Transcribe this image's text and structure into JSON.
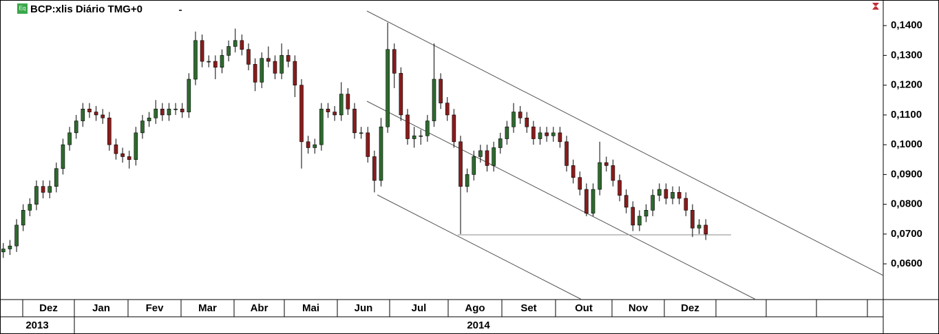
{
  "chart_data": {
    "type": "candlestick",
    "title": "BCP:xlis Diário TMG+0",
    "icon_label": "Eq",
    "up_color": "#2f6a2f",
    "down_color": "#8a1c1c",
    "ylim": [
      0.048,
      0.1486
    ],
    "yticks": [
      {
        "value": 0.14,
        "label": "0,1400"
      },
      {
        "value": 0.13,
        "label": "0,1300"
      },
      {
        "value": 0.12,
        "label": "0,1200"
      },
      {
        "value": 0.11,
        "label": "0,1100"
      },
      {
        "value": 0.1,
        "label": "0,1000"
      },
      {
        "value": 0.09,
        "label": "0,0900"
      },
      {
        "value": 0.08,
        "label": "0,0800"
      },
      {
        "value": 0.07,
        "label": "0,0700"
      },
      {
        "value": 0.06,
        "label": "0,0600"
      }
    ],
    "months": [
      "Dez",
      "Jan",
      "Fev",
      "Mar",
      "Abr",
      "Mai",
      "Jun",
      "Jul",
      "Ago",
      "Set",
      "Out",
      "Nov",
      "Dez"
    ],
    "years": [
      "2013",
      "2014"
    ],
    "open": [
      0.064,
      0.065,
      0.066,
      0.073,
      0.078,
      0.08,
      0.086,
      0.084,
      0.086,
      0.092,
      0.1,
      0.104,
      0.108,
      0.112,
      0.111,
      0.11,
      0.109,
      0.1,
      0.097,
      0.096,
      0.095,
      0.104,
      0.108,
      0.109,
      0.112,
      0.11,
      0.112,
      0.112,
      0.111,
      0.122,
      0.135,
      0.128,
      0.128,
      0.126,
      0.13,
      0.133,
      0.135,
      0.132,
      0.127,
      0.121,
      0.129,
      0.128,
      0.124,
      0.13,
      0.128,
      0.12,
      0.101,
      0.099,
      0.1,
      0.112,
      0.111,
      0.11,
      0.117,
      0.112,
      0.104,
      0.104,
      0.096,
      0.088,
      0.106,
      0.132,
      0.124,
      0.11,
      0.102,
      0.103,
      0.103,
      0.108,
      0.122,
      0.114,
      0.11,
      0.101,
      0.086,
      0.09,
      0.096,
      0.098,
      0.093,
      0.099,
      0.102,
      0.106,
      0.111,
      0.109,
      0.106,
      0.102,
      0.104,
      0.103,
      0.104,
      0.101,
      0.093,
      0.089,
      0.085,
      0.077,
      0.085,
      0.094,
      0.093,
      0.088,
      0.083,
      0.079,
      0.073,
      0.076,
      0.078,
      0.083,
      0.085,
      0.082,
      0.084,
      0.082,
      0.078,
      0.072,
      0.073
    ],
    "high": [
      0.067,
      0.068,
      0.075,
      0.08,
      0.082,
      0.088,
      0.088,
      0.088,
      0.094,
      0.102,
      0.106,
      0.11,
      0.114,
      0.114,
      0.113,
      0.112,
      0.111,
      0.102,
      0.099,
      0.098,
      0.106,
      0.11,
      0.111,
      0.115,
      0.114,
      0.114,
      0.114,
      0.114,
      0.124,
      0.138,
      0.137,
      0.13,
      0.13,
      0.132,
      0.135,
      0.139,
      0.137,
      0.134,
      0.129,
      0.131,
      0.133,
      0.13,
      0.134,
      0.132,
      0.13,
      0.122,
      0.103,
      0.102,
      0.114,
      0.114,
      0.113,
      0.121,
      0.119,
      0.114,
      0.106,
      0.106,
      0.098,
      0.109,
      0.141,
      0.134,
      0.126,
      0.112,
      0.106,
      0.105,
      0.11,
      0.134,
      0.124,
      0.116,
      0.112,
      0.103,
      0.092,
      0.098,
      0.1,
      0.1,
      0.101,
      0.104,
      0.108,
      0.114,
      0.113,
      0.111,
      0.108,
      0.106,
      0.106,
      0.106,
      0.106,
      0.103,
      0.095,
      0.091,
      0.087,
      0.087,
      0.101,
      0.096,
      0.095,
      0.09,
      0.085,
      0.081,
      0.078,
      0.08,
      0.085,
      0.087,
      0.087,
      0.086,
      0.086,
      0.084,
      0.08,
      0.075,
      0.075
    ],
    "low": [
      0.062,
      0.063,
      0.064,
      0.071,
      0.076,
      0.078,
      0.082,
      0.082,
      0.084,
      0.09,
      0.098,
      0.102,
      0.106,
      0.109,
      0.108,
      0.107,
      0.098,
      0.095,
      0.094,
      0.092,
      0.093,
      0.102,
      0.106,
      0.107,
      0.108,
      0.108,
      0.11,
      0.109,
      0.109,
      0.12,
      0.126,
      0.126,
      0.122,
      0.124,
      0.128,
      0.131,
      0.13,
      0.125,
      0.118,
      0.119,
      0.126,
      0.122,
      0.122,
      0.126,
      0.116,
      0.092,
      0.097,
      0.097,
      0.098,
      0.109,
      0.108,
      0.108,
      0.11,
      0.102,
      0.102,
      0.094,
      0.084,
      0.086,
      0.104,
      0.119,
      0.108,
      0.1,
      0.099,
      0.1,
      0.101,
      0.106,
      0.112,
      0.108,
      0.099,
      0.07,
      0.084,
      0.088,
      0.094,
      0.091,
      0.091,
      0.097,
      0.1,
      0.104,
      0.107,
      0.104,
      0.1,
      0.1,
      0.101,
      0.101,
      0.099,
      0.091,
      0.087,
      0.083,
      0.076,
      0.076,
      0.083,
      0.091,
      0.086,
      0.081,
      0.077,
      0.071,
      0.071,
      0.074,
      0.076,
      0.081,
      0.08,
      0.08,
      0.08,
      0.076,
      0.069,
      0.07,
      0.068
    ],
    "close": [
      0.065,
      0.066,
      0.073,
      0.078,
      0.08,
      0.086,
      0.084,
      0.086,
      0.092,
      0.1,
      0.104,
      0.108,
      0.112,
      0.111,
      0.11,
      0.109,
      0.1,
      0.097,
      0.096,
      0.095,
      0.104,
      0.108,
      0.109,
      0.112,
      0.11,
      0.112,
      0.112,
      0.111,
      0.122,
      0.135,
      0.128,
      0.128,
      0.126,
      0.13,
      0.133,
      0.135,
      0.132,
      0.127,
      0.121,
      0.129,
      0.128,
      0.124,
      0.13,
      0.128,
      0.12,
      0.101,
      0.099,
      0.1,
      0.112,
      0.111,
      0.11,
      0.117,
      0.112,
      0.104,
      0.104,
      0.096,
      0.088,
      0.106,
      0.132,
      0.124,
      0.11,
      0.102,
      0.103,
      0.103,
      0.108,
      0.122,
      0.114,
      0.11,
      0.101,
      0.086,
      0.09,
      0.096,
      0.098,
      0.093,
      0.099,
      0.102,
      0.106,
      0.111,
      0.109,
      0.106,
      0.102,
      0.104,
      0.103,
      0.104,
      0.101,
      0.093,
      0.089,
      0.085,
      0.077,
      0.085,
      0.094,
      0.093,
      0.088,
      0.083,
      0.079,
      0.073,
      0.076,
      0.078,
      0.083,
      0.085,
      0.082,
      0.084,
      0.082,
      0.078,
      0.072,
      0.073,
      0.07
    ]
  }
}
